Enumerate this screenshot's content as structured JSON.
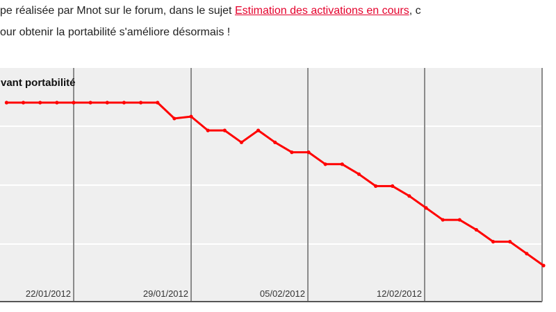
{
  "article": {
    "line1_text": "pe réalisée par Mnot sur le forum, dans le sujet ",
    "link_text": "Estimation des activations en cours",
    "line1_tail": ", c",
    "line2_text": "our obtenir la portabilité s'améliore désormais !"
  },
  "chart_data": {
    "type": "line",
    "title": "vant portabilité",
    "x_tick_labels": [
      "22/01/2012",
      "29/01/2012",
      "05/02/2012",
      "12/02/2012"
    ],
    "series": [
      {
        "color": "#ff0000",
        "points": [
          {
            "date": "2012-01-18",
            "rel": 1.0
          },
          {
            "date": "2012-01-19",
            "rel": 1.0
          },
          {
            "date": "2012-01-20",
            "rel": 1.0
          },
          {
            "date": "2012-01-21",
            "rel": 1.0
          },
          {
            "date": "2012-01-22",
            "rel": 1.0
          },
          {
            "date": "2012-01-23",
            "rel": 1.0
          },
          {
            "date": "2012-01-24",
            "rel": 1.0
          },
          {
            "date": "2012-01-25",
            "rel": 1.0
          },
          {
            "date": "2012-01-26",
            "rel": 1.0
          },
          {
            "date": "2012-01-27",
            "rel": 1.0
          },
          {
            "date": "2012-01-28",
            "rel": 0.92
          },
          {
            "date": "2012-01-29",
            "rel": 0.93
          },
          {
            "date": "2012-01-30",
            "rel": 0.86
          },
          {
            "date": "2012-01-31",
            "rel": 0.86
          },
          {
            "date": "2012-02-01",
            "rel": 0.8
          },
          {
            "date": "2012-02-02",
            "rel": 0.86
          },
          {
            "date": "2012-02-03",
            "rel": 0.8
          },
          {
            "date": "2012-02-04",
            "rel": 0.75
          },
          {
            "date": "2012-02-05",
            "rel": 0.75
          },
          {
            "date": "2012-02-06",
            "rel": 0.69
          },
          {
            "date": "2012-02-07",
            "rel": 0.69
          },
          {
            "date": "2012-02-08",
            "rel": 0.64
          },
          {
            "date": "2012-02-09",
            "rel": 0.58
          },
          {
            "date": "2012-02-10",
            "rel": 0.58
          },
          {
            "date": "2012-02-11",
            "rel": 0.53
          },
          {
            "date": "2012-02-12",
            "rel": 0.47
          },
          {
            "date": "2012-02-13",
            "rel": 0.41
          },
          {
            "date": "2012-02-14",
            "rel": 0.41
          },
          {
            "date": "2012-02-15",
            "rel": 0.36
          },
          {
            "date": "2012-02-16",
            "rel": 0.3
          },
          {
            "date": "2012-02-17",
            "rel": 0.3
          },
          {
            "date": "2012-02-18",
            "rel": 0.24
          },
          {
            "date": "2012-02-19",
            "rel": 0.18
          }
        ]
      }
    ],
    "grid": true,
    "vertical_gridlines_at_ticks": true
  }
}
